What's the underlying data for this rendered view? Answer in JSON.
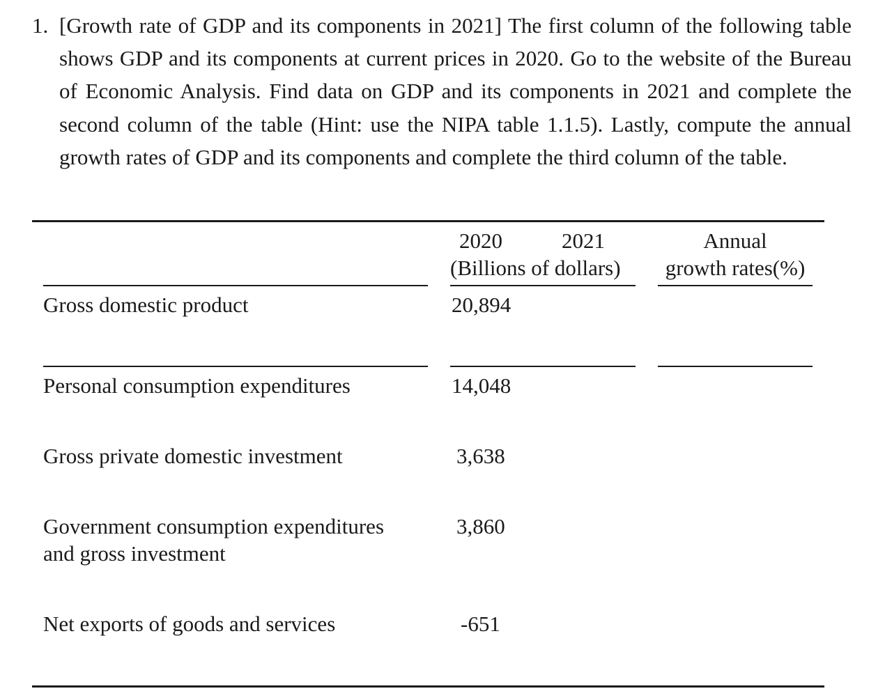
{
  "problem": {
    "number": "1.",
    "text": "[Growth rate of GDP and its components in 2021] The first column of the following table shows GDP and its components at current prices in 2020. Go to the website of the Bureau of Economic Analysis. Find data on GDP and its components in 2021 and complete the second column of the table (Hint: use the NIPA table 1.1.5). Lastly, compute the annual growth rates of GDP and its components and complete the third column of the table."
  },
  "table": {
    "headers": {
      "year_2020": "2020",
      "year_2021": "2021",
      "units": "(Billions of dollars)",
      "growth_line1": "Annual",
      "growth_line2": "growth rates(%)"
    },
    "rows": [
      {
        "label": "Gross domestic product",
        "value_2020": "20,894",
        "value_2021": "",
        "growth": ""
      },
      {
        "label": "Personal consumption expenditures",
        "value_2020": "14,048",
        "value_2021": "",
        "growth": ""
      },
      {
        "label": "Gross private domestic investment",
        "value_2020": "3,638",
        "value_2021": "",
        "growth": ""
      },
      {
        "label_line1": "Government consumption expenditures",
        "label_line2": "and gross investment",
        "value_2020": "3,860",
        "value_2021": "",
        "growth": ""
      },
      {
        "label": "Net exports of goods and services",
        "value_2020": "-651",
        "value_2021": "",
        "growth": ""
      }
    ]
  }
}
